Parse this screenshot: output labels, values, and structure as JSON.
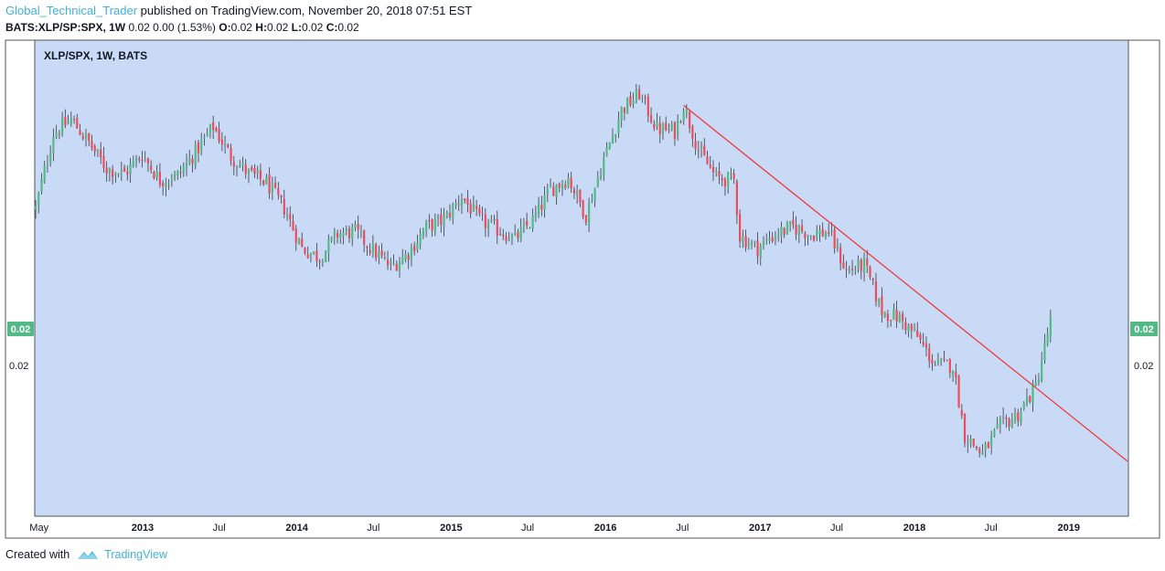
{
  "header": {
    "author": "Global_Technical_Trader",
    "published": "published on TradingView.com, November 20, 2018 07:51 EST"
  },
  "symbol_line": {
    "symbol": "BATS:XLP/SP:SPX, 1W",
    "quote": "0.02 0.00 (1.53%)",
    "open_label": "O:",
    "open_value": "0.02",
    "high_label": "H:",
    "high_value": "0.02",
    "low_label": "L:",
    "low_value": "0.02",
    "close_label": "C:",
    "close_value": "0.02"
  },
  "footer": {
    "created_with": "Created with",
    "brand": "TradingView"
  },
  "colors": {
    "plot_background": "#c9daf7",
    "frame": "#000000",
    "up_candle": "#53b987",
    "down_candle": "#eb4d5c",
    "trendline": "#f03a3a",
    "price_badge": "#53b987"
  },
  "chart_data": {
    "type": "candlestick",
    "title": "XLP/SPX, 1W, BATS",
    "x_axis_labels": [
      "May",
      "2013",
      "Jul",
      "2014",
      "Jul",
      "2015",
      "Jul",
      "2016",
      "Jul",
      "2017",
      "Jul",
      "2018",
      "Jul",
      "2019"
    ],
    "y_axis_labels": {
      "left": "0.02",
      "right": "0.02"
    },
    "last_price_badge": {
      "left": "0.02",
      "right": "0.02"
    },
    "x_range": [
      "2012-04-23",
      "2019-05-20"
    ],
    "series": [
      {
        "interval": "1W",
        "close_path": [
          [
            "2012-04-23",
            0.3
          ],
          [
            "2012-06-04",
            0.62
          ],
          [
            "2012-07-16",
            0.68
          ],
          [
            "2012-08-27",
            0.58
          ],
          [
            "2012-10-08",
            0.47
          ],
          [
            "2012-11-19",
            0.45
          ],
          [
            "2012-12-31",
            0.53
          ],
          [
            "2013-02-11",
            0.42
          ],
          [
            "2013-03-25",
            0.44
          ],
          [
            "2013-05-06",
            0.54
          ],
          [
            "2013-06-17",
            0.65
          ],
          [
            "2013-07-29",
            0.52
          ],
          [
            "2013-09-09",
            0.45
          ],
          [
            "2013-10-21",
            0.41
          ],
          [
            "2013-12-02",
            0.3
          ],
          [
            "2014-01-13",
            0.13
          ],
          [
            "2014-02-24",
            0.09
          ],
          [
            "2014-04-07",
            0.19
          ],
          [
            "2014-05-19",
            0.2
          ],
          [
            "2014-06-30",
            0.12
          ],
          [
            "2014-08-11",
            0.05
          ],
          [
            "2014-09-22",
            0.11
          ],
          [
            "2014-11-03",
            0.22
          ],
          [
            "2014-12-15",
            0.25
          ],
          [
            "2015-01-26",
            0.35
          ],
          [
            "2015-03-09",
            0.25
          ],
          [
            "2015-04-20",
            0.21
          ],
          [
            "2015-06-01",
            0.17
          ],
          [
            "2015-07-13",
            0.25
          ],
          [
            "2015-08-24",
            0.38
          ],
          [
            "2015-10-05",
            0.43
          ],
          [
            "2015-11-16",
            0.27
          ],
          [
            "2015-12-28",
            0.51
          ],
          [
            "2016-02-08",
            0.72
          ],
          [
            "2016-03-21",
            0.79
          ],
          [
            "2016-05-02",
            0.64
          ],
          [
            "2016-06-13",
            0.63
          ],
          [
            "2016-07-04",
            0.74
          ],
          [
            "2016-08-08",
            0.55
          ],
          [
            "2016-09-19",
            0.43
          ],
          [
            "2016-10-31",
            0.42
          ],
          [
            "2016-11-14",
            0.18
          ],
          [
            "2016-12-26",
            0.13
          ],
          [
            "2017-02-06",
            0.19
          ],
          [
            "2017-03-20",
            0.22
          ],
          [
            "2017-05-01",
            0.19
          ],
          [
            "2017-06-12",
            0.2
          ],
          [
            "2017-07-24",
            0.03
          ],
          [
            "2017-09-04",
            0.06
          ],
          [
            "2017-10-16",
            -0.14
          ],
          [
            "2017-11-27",
            -0.17
          ],
          [
            "2018-01-08",
            -0.25
          ],
          [
            "2018-02-19",
            -0.37
          ],
          [
            "2018-04-02",
            -0.37
          ],
          [
            "2018-04-30",
            -0.67
          ],
          [
            "2018-06-11",
            -0.75
          ],
          [
            "2018-07-23",
            -0.63
          ],
          [
            "2018-09-03",
            -0.58
          ],
          [
            "2018-10-15",
            -0.46
          ],
          [
            "2018-11-19",
            -0.18
          ]
        ]
      }
    ],
    "annotations": [
      {
        "type": "trendline",
        "from": [
          "2016-07-04",
          0.74
        ],
        "to": [
          "2019-05-20",
          -0.78
        ]
      }
    ],
    "grid": false,
    "legend": "top-left"
  }
}
